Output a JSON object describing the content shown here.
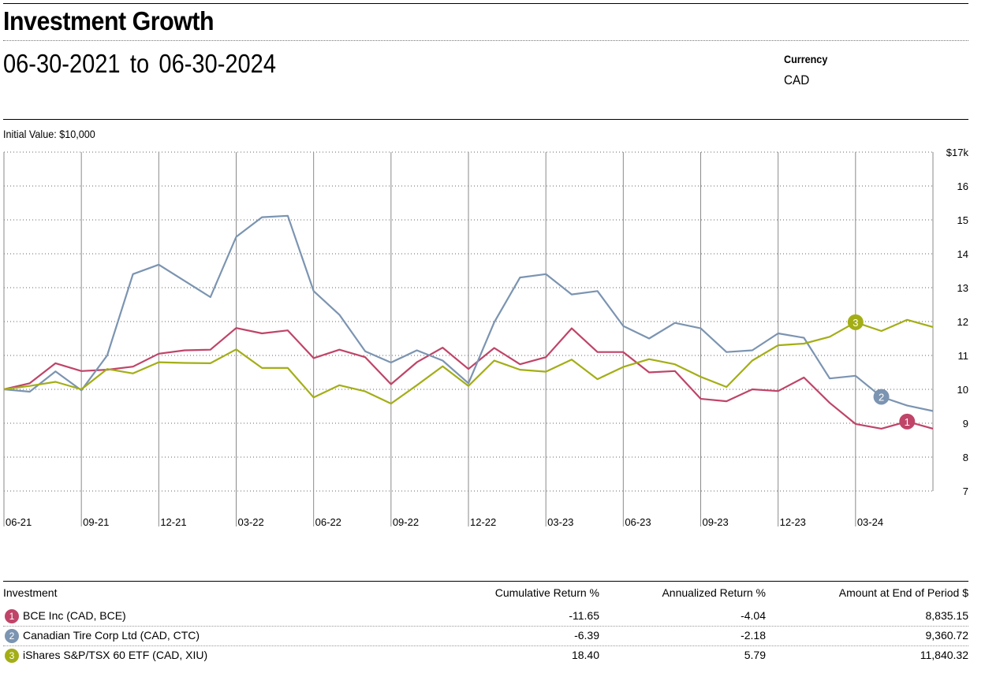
{
  "header": {
    "title": "Investment Growth",
    "start_date": "06-30-2021",
    "to_word": "to",
    "end_date": "06-30-2024",
    "currency_label": "Currency",
    "currency_value": "CAD",
    "initial_value": "Initial Value:  $10,000"
  },
  "chart_data": {
    "type": "line",
    "x_tick_labels": [
      "06-21",
      "09-21",
      "12-21",
      "03-22",
      "06-22",
      "09-22",
      "12-22",
      "03-23",
      "06-23",
      "09-23",
      "12-23",
      "03-24"
    ],
    "y_tick_labels": [
      "$17k",
      "16",
      "15",
      "14",
      "13",
      "12",
      "11",
      "10",
      "9",
      "8",
      "7"
    ],
    "ylim": [
      7,
      17
    ],
    "y_unit": "thousand CAD",
    "grid": true,
    "series": [
      {
        "name": "BCE Inc (CAD, BCE)",
        "marker": "1",
        "color": "#bf4468",
        "values": [
          10.0,
          10.18,
          10.77,
          10.54,
          10.58,
          10.67,
          11.05,
          11.15,
          11.17,
          11.81,
          11.65,
          11.74,
          10.92,
          11.17,
          10.95,
          10.15,
          10.8,
          11.23,
          10.6,
          11.22,
          10.74,
          10.95,
          11.8,
          11.1,
          11.1,
          10.5,
          10.54,
          9.72,
          9.65,
          10.0,
          9.95,
          10.35,
          9.6,
          8.98,
          8.84,
          9.05,
          8.84
        ]
      },
      {
        "name": "Canadian Tire Corp Ltd (CAD, CTC)",
        "marker": "2",
        "color": "#7b94b1",
        "values": [
          10.0,
          9.93,
          10.53,
          9.97,
          11.0,
          13.4,
          13.68,
          13.2,
          12.72,
          14.5,
          15.08,
          15.12,
          12.9,
          12.2,
          11.12,
          10.79,
          11.15,
          10.85,
          10.18,
          11.98,
          13.3,
          13.4,
          12.8,
          12.9,
          11.87,
          11.5,
          11.96,
          11.8,
          11.1,
          11.15,
          11.65,
          11.52,
          10.32,
          10.4,
          9.78,
          9.52,
          9.36
        ]
      },
      {
        "name": "iShares S&P/TSX 60 ETF (CAD, XIU)",
        "marker": "3",
        "color": "#a3ae16",
        "values": [
          10.0,
          10.1,
          10.22,
          10.0,
          10.6,
          10.47,
          10.8,
          10.78,
          10.77,
          11.18,
          10.63,
          10.63,
          9.76,
          10.12,
          9.94,
          9.58,
          10.12,
          10.68,
          10.1,
          10.85,
          10.58,
          10.52,
          10.88,
          10.3,
          10.66,
          10.89,
          10.74,
          10.37,
          10.07,
          10.85,
          11.3,
          11.35,
          11.55,
          11.98,
          11.72,
          12.05,
          11.84
        ]
      }
    ]
  },
  "table": {
    "headers": {
      "investment": "Investment",
      "cumulative": "Cumulative Return %",
      "annualized": "Annualized Return %",
      "amount": "Amount at End of Period  $"
    },
    "rows": [
      {
        "marker": "1",
        "name": "BCE Inc (CAD, BCE)",
        "cumulative": "-11.65",
        "annualized": "-4.04",
        "amount": "8,835.15",
        "color": "#bf4468"
      },
      {
        "marker": "2",
        "name": "Canadian Tire Corp Ltd (CAD, CTC)",
        "cumulative": "-6.39",
        "annualized": "-2.18",
        "amount": "9,360.72",
        "color": "#7b94b1"
      },
      {
        "marker": "3",
        "name": "iShares S&P/TSX 60 ETF (CAD, XIU)",
        "cumulative": "18.40",
        "annualized": "5.79",
        "amount": "11,840.32",
        "color": "#a3ae16"
      }
    ]
  }
}
